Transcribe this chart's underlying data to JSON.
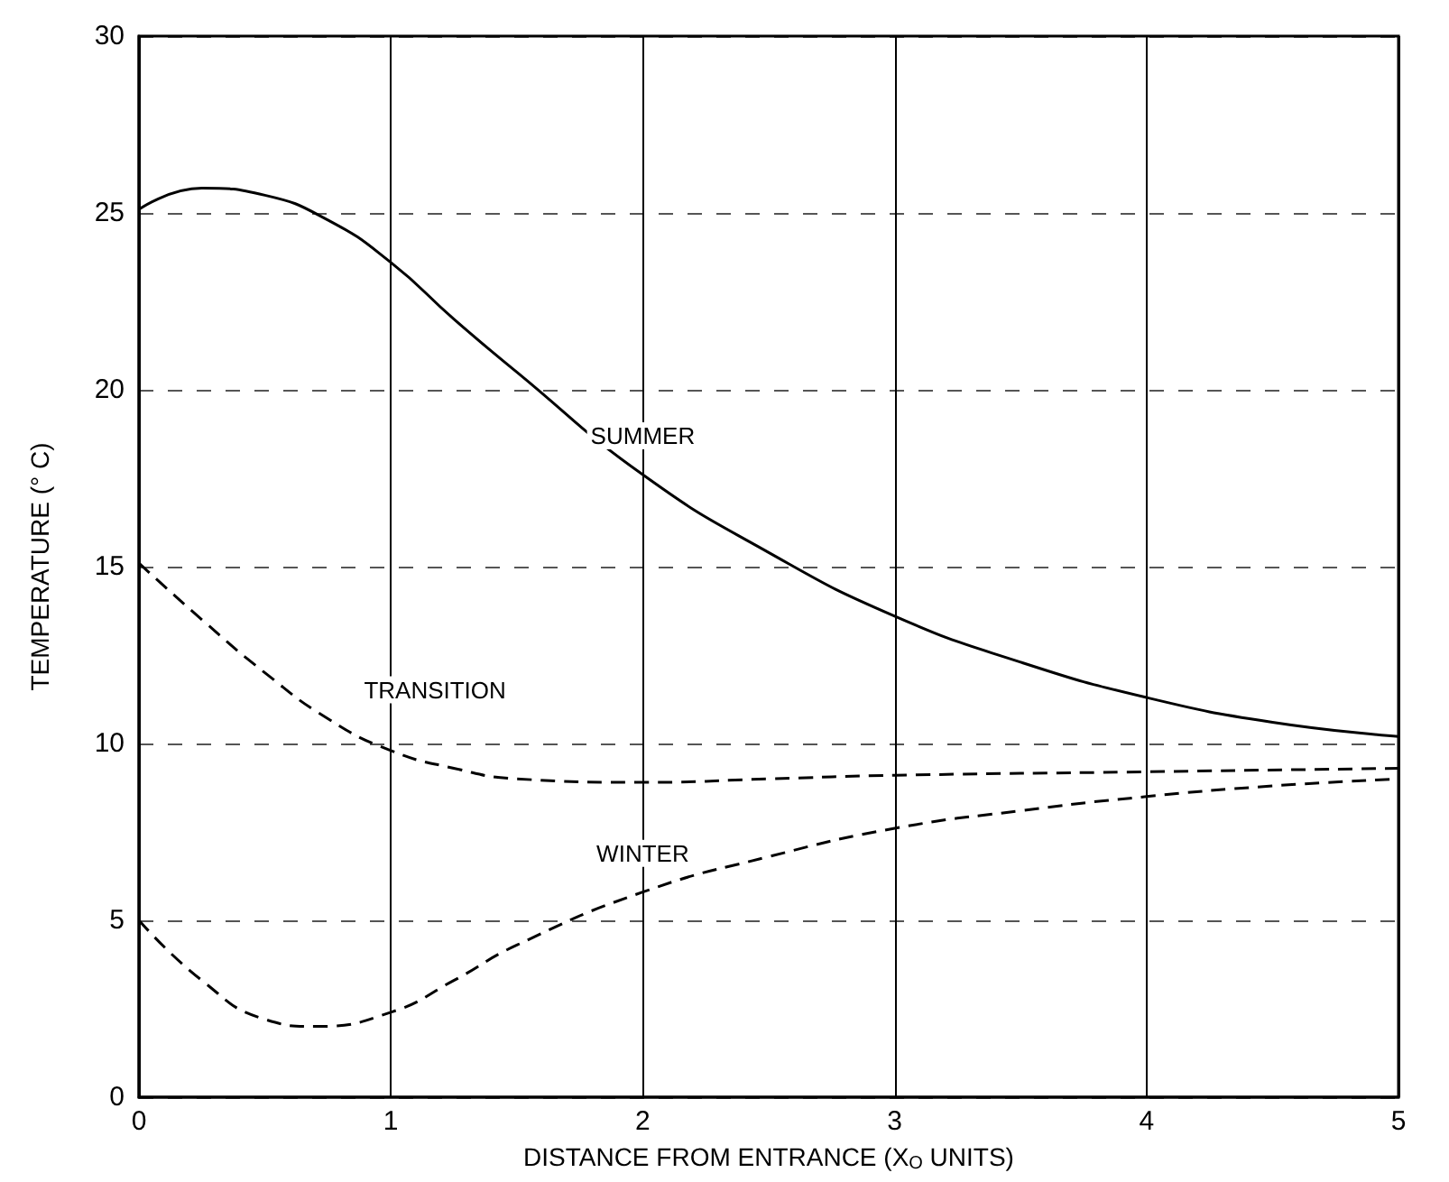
{
  "chart_data": {
    "type": "line",
    "xlabel": "DISTANCE FROM ENTRANCE (X$_{O}$ UNITS)",
    "ylabel": "TEMPERATURE (° C)",
    "xlim": [
      0,
      5
    ],
    "xticks": [
      0,
      1,
      2,
      3,
      4,
      5
    ],
    "ylim": [
      0,
      30
    ],
    "yticks": [
      0,
      5,
      10,
      15,
      20,
      25,
      30
    ],
    "grid": true,
    "legend": false,
    "series": [
      {
        "name": "SUMMER",
        "color": "#000000",
        "line_style": "solid",
        "x": [
          0,
          0.25,
          0.5,
          0.75,
          1,
          1.25,
          1.5,
          2,
          2.5,
          3,
          3.5,
          4,
          4.5,
          5
        ],
        "values": [
          25.1,
          25.7,
          25.5,
          24.8,
          23.6,
          22.0,
          20.5,
          17.6,
          15.4,
          13.6,
          12.3,
          11.3,
          10.6,
          10.2
        ]
      },
      {
        "name": "TRANSITION",
        "color": "#000000",
        "line_style": "dashed",
        "x": [
          0,
          0.25,
          0.5,
          0.75,
          1,
          1.25,
          1.5,
          2,
          2.5,
          3,
          4,
          5
        ],
        "values": [
          15.1,
          13.5,
          12.0,
          10.7,
          9.8,
          9.3,
          9.0,
          8.9,
          9.0,
          9.1,
          9.2,
          9.3
        ]
      },
      {
        "name": "WINTER",
        "color": "#000000",
        "line_style": "dashed",
        "x": [
          0,
          0.25,
          0.5,
          0.7,
          1,
          1.25,
          1.5,
          2,
          2.5,
          3,
          3.5,
          4,
          4.5,
          5
        ],
        "values": [
          5.0,
          3.3,
          2.2,
          2.0,
          2.4,
          3.3,
          4.3,
          5.8,
          6.8,
          7.6,
          8.1,
          8.5,
          8.8,
          9.0
        ]
      }
    ]
  }
}
